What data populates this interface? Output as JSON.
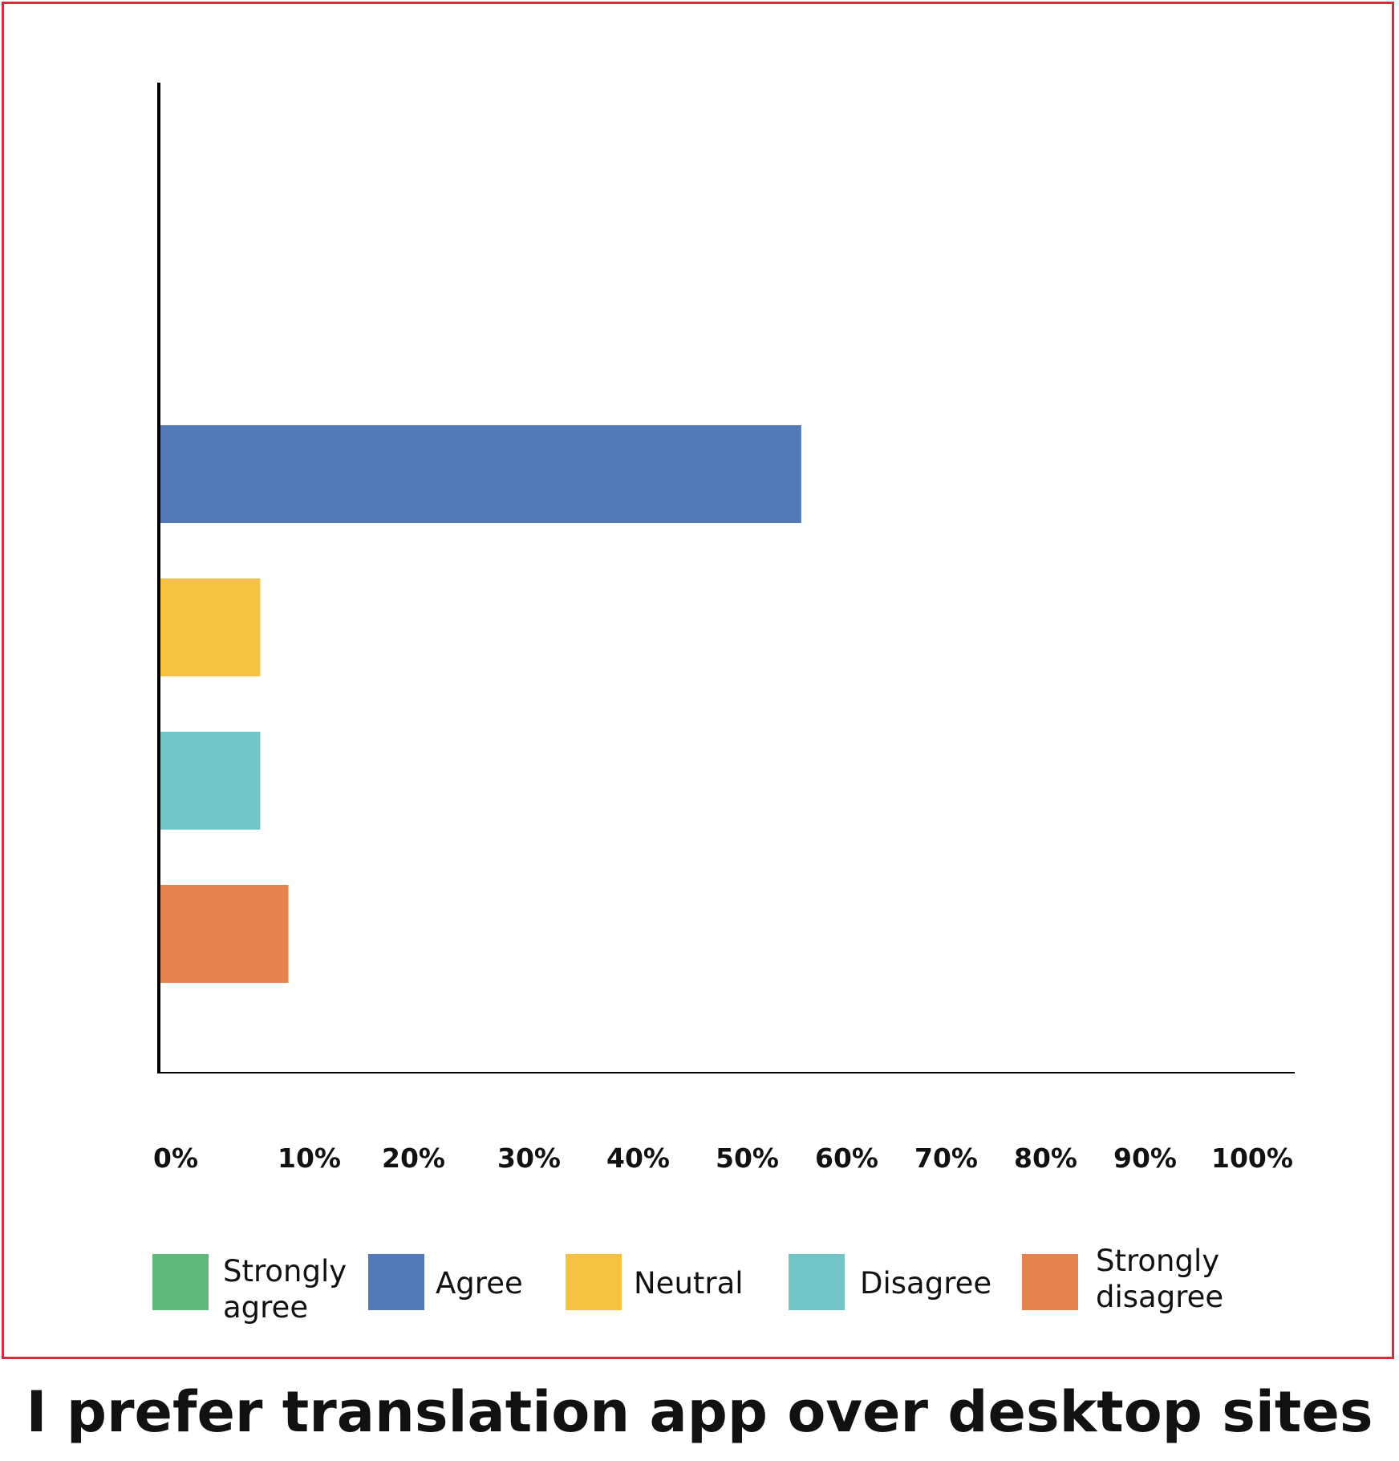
{
  "chart_data": {
    "type": "bar",
    "orientation": "horizontal",
    "title": "I prefer translation app over desktop sites",
    "xlabel": "",
    "ylabel": "",
    "xlim": [
      0,
      100
    ],
    "x_ticks": [
      "0%",
      "10%",
      "20%",
      "30%",
      "40%",
      "50%",
      "60%",
      "70%",
      "80%",
      "90%",
      "100%"
    ],
    "categories": [
      "Strongly agree",
      "Agree",
      "Neutral",
      "Disagree",
      "Strongly disagree"
    ],
    "values": [
      0,
      57,
      9,
      9,
      11.5
    ],
    "unit": "%",
    "colors": [
      "#5eb97a",
      "#5479b8",
      "#f4c342",
      "#72c5c6",
      "#e5834e"
    ],
    "legend": {
      "position": "bottom",
      "entries": [
        {
          "label_lines": [
            "Strongly",
            "agree"
          ],
          "color": "#5eb97a"
        },
        {
          "label_lines": [
            "Agree"
          ],
          "color": "#5479b8"
        },
        {
          "label_lines": [
            "Neutral"
          ],
          "color": "#f4c342"
        },
        {
          "label_lines": [
            "Disagree"
          ],
          "color": "#72c5c6"
        },
        {
          "label_lines": [
            "Strongly",
            "disagree"
          ],
          "color": "#e5834e"
        }
      ]
    },
    "grid": false,
    "frame_color": "#e0283a"
  }
}
